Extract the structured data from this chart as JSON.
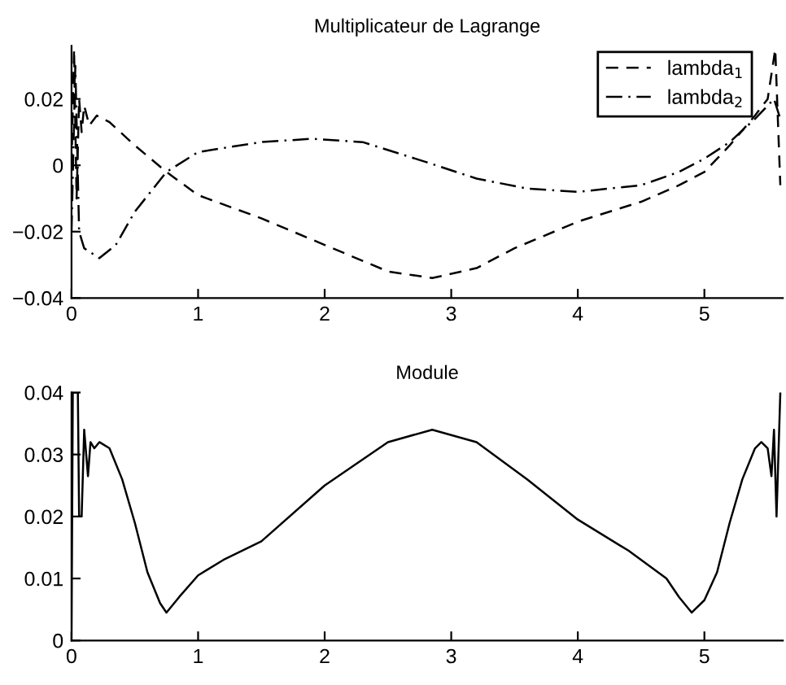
{
  "chart_data": [
    {
      "type": "line",
      "title": "Multiplicateur de Lagrange",
      "xlim": [
        0,
        5.62
      ],
      "ylim": [
        -0.04,
        0.036
      ],
      "xticks": [
        0,
        1,
        2,
        3,
        4,
        5
      ],
      "yticks": [
        -0.04,
        -0.02,
        0,
        0.02
      ],
      "legend": "top right",
      "grid": false,
      "marker": "none",
      "series": [
        {
          "name": "lambda$_{1}$",
          "color": "#000000",
          "line_style": "dashed",
          "x": [
            0,
            0.02,
            0.04,
            0.06,
            0.08,
            0.1,
            0.14,
            0.2,
            0.3,
            0.5,
            0.75,
            1.0,
            1.5,
            2.0,
            2.5,
            2.85,
            3.2,
            3.5,
            4.0,
            4.5,
            4.8,
            5.0,
            5.2,
            5.4,
            5.5,
            5.56,
            5.6
          ],
          "values": [
            0.0,
            0.035,
            -0.01,
            0.02,
            0.01,
            0.018,
            0.012,
            0.015,
            0.013,
            0.006,
            -0.002,
            -0.009,
            -0.016,
            -0.024,
            -0.032,
            -0.034,
            -0.031,
            -0.025,
            -0.017,
            -0.011,
            -0.006,
            -0.002,
            0.006,
            0.015,
            0.02,
            0.035,
            -0.006
          ]
        },
        {
          "name": "lambda$_{2}$",
          "color": "#000000",
          "line_style": "dashdot",
          "x": [
            0,
            0.03,
            0.06,
            0.1,
            0.22,
            0.35,
            0.5,
            0.75,
            1.0,
            1.5,
            1.9,
            2.3,
            2.8,
            3.2,
            3.6,
            4.0,
            4.5,
            4.8,
            5.0,
            5.2,
            5.4,
            5.55,
            5.6
          ],
          "values": [
            -0.02,
            0.03,
            -0.02,
            -0.025,
            -0.028,
            -0.024,
            -0.014,
            -0.002,
            0.004,
            0.007,
            0.008,
            0.007,
            0.001,
            -0.004,
            -0.007,
            -0.008,
            -0.006,
            -0.002,
            0.002,
            0.007,
            0.014,
            0.02,
            0.014
          ]
        }
      ]
    },
    {
      "type": "line",
      "title": "Module",
      "xlim": [
        0,
        5.62
      ],
      "ylim": [
        0,
        0.04
      ],
      "xticks": [
        0,
        1,
        2,
        3,
        4,
        5
      ],
      "yticks": [
        0,
        0.01,
        0.02,
        0.03,
        0.04
      ],
      "legend": false,
      "grid": false,
      "marker": "none",
      "series": [
        {
          "color": "#000000",
          "line_style": "solid",
          "x": [
            0,
            0.01,
            0.05,
            0.06,
            0.08,
            0.1,
            0.13,
            0.15,
            0.18,
            0.22,
            0.3,
            0.4,
            0.5,
            0.6,
            0.7,
            0.75,
            0.85,
            1.0,
            1.2,
            1.5,
            2.0,
            2.5,
            2.85,
            3.2,
            3.6,
            4.0,
            4.4,
            4.7,
            4.8,
            4.9,
            5.0,
            5.1,
            5.2,
            5.3,
            5.4,
            5.45,
            5.5,
            5.53,
            5.55,
            5.57,
            5.6
          ],
          "values": [
            0.0,
            0.04,
            0.04,
            0.02,
            0.02,
            0.034,
            0.0265,
            0.032,
            0.031,
            0.032,
            0.031,
            0.026,
            0.019,
            0.011,
            0.006,
            0.0045,
            0.007,
            0.0105,
            0.013,
            0.016,
            0.025,
            0.032,
            0.034,
            0.032,
            0.026,
            0.0195,
            0.0145,
            0.01,
            0.007,
            0.0045,
            0.0065,
            0.011,
            0.019,
            0.026,
            0.031,
            0.032,
            0.031,
            0.0265,
            0.034,
            0.02,
            0.04
          ]
        }
      ]
    }
  ]
}
